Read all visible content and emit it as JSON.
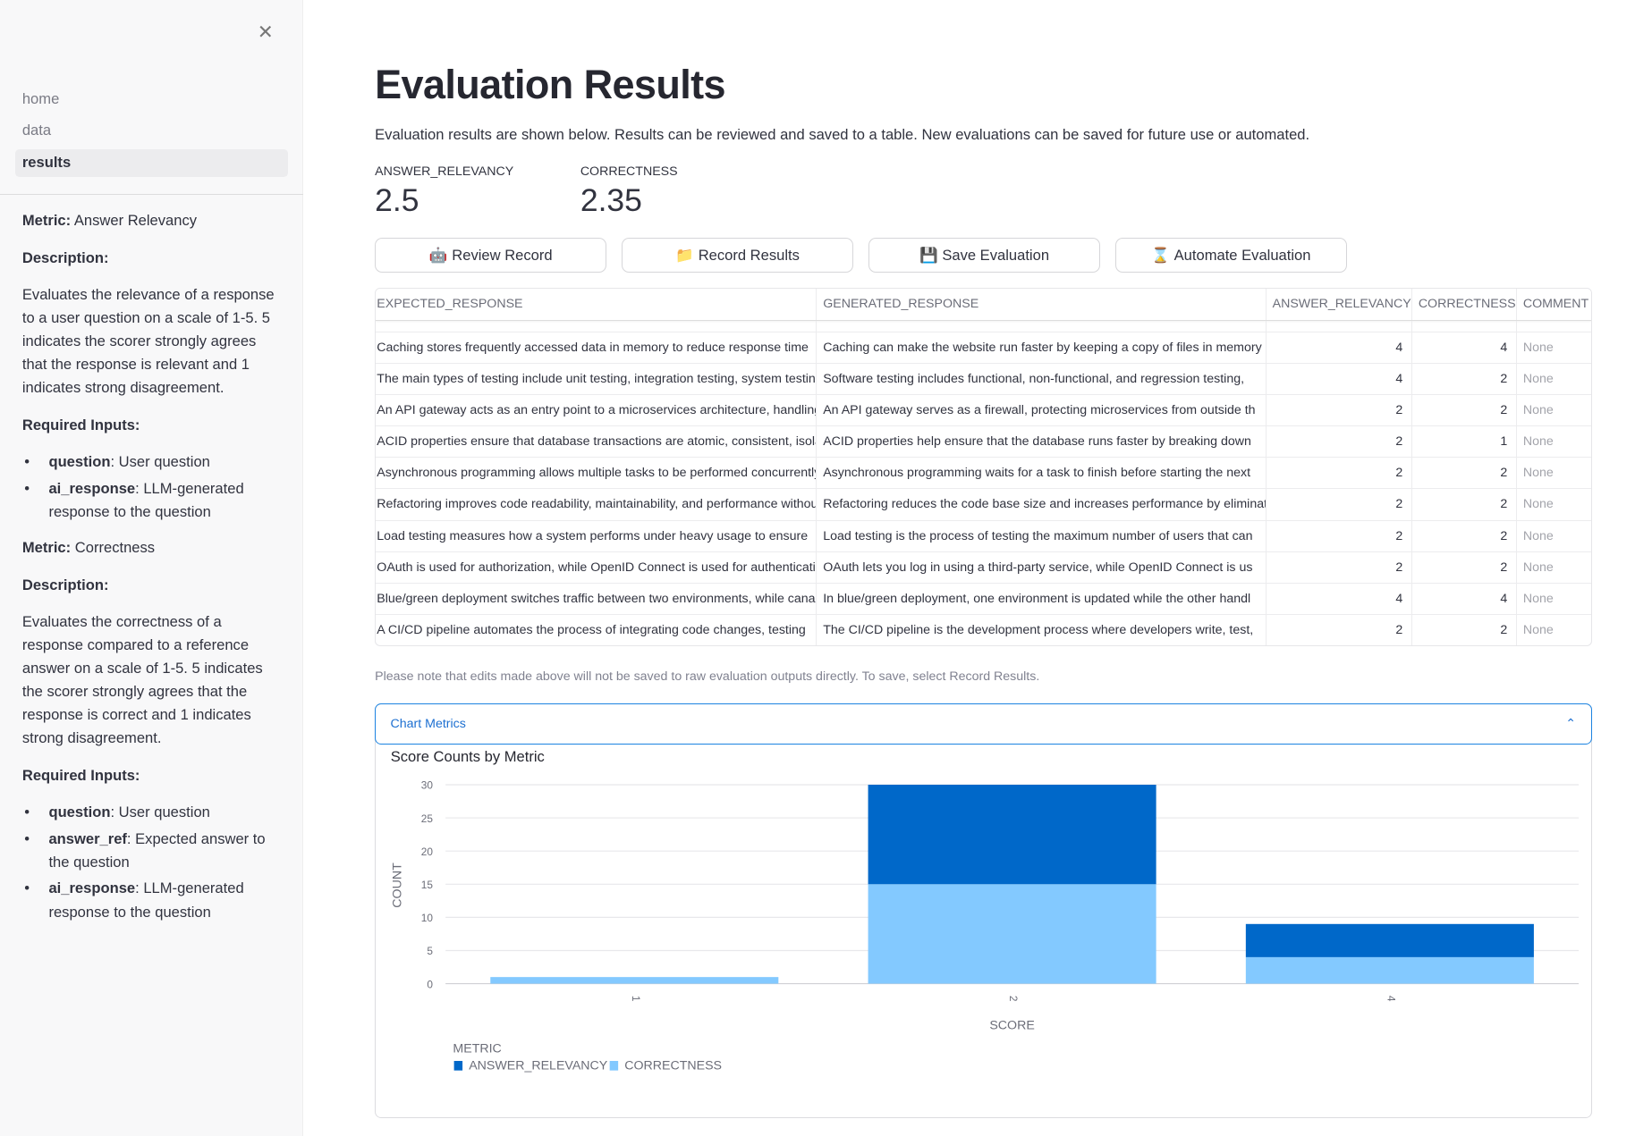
{
  "sidebar": {
    "nav": [
      "home",
      "data",
      "results"
    ],
    "selected": "results",
    "metrics": [
      {
        "metric_label": "Metric:",
        "metric_name": "Answer Relevancy",
        "desc_label": "Description:",
        "description": "Evaluates the relevance of a response to a user question on a scale of 1-5. 5 indicates the scorer strongly agrees that the response is relevant and 1 indicates strong disagreement.",
        "inputs_label": "Required Inputs:",
        "inputs": [
          {
            "name": "question",
            "text": ": User question"
          },
          {
            "name": "ai_response",
            "text": ": LLM-generated response to the question"
          }
        ]
      },
      {
        "metric_label": "Metric:",
        "metric_name": "Correctness",
        "desc_label": "Description:",
        "description": "Evaluates the correctness of a response compared to a reference answer on a scale of 1-5. 5 indicates the scorer strongly agrees that the response is correct and 1 indicates strong disagreement.",
        "inputs_label": "Required Inputs:",
        "inputs": [
          {
            "name": "question",
            "text": ": User question"
          },
          {
            "name": "answer_ref",
            "text": ": Expected answer to the question"
          },
          {
            "name": "ai_response",
            "text": ": LLM-generated response to the question"
          }
        ]
      }
    ]
  },
  "main": {
    "title": "Evaluation Results",
    "description": "Evaluation results are shown below. Results can be reviewed and saved to a table. New evaluations can be saved for future use or automated.",
    "metrics": [
      {
        "label": "ANSWER_RELEVANCY",
        "value": "2.5"
      },
      {
        "label": "CORRECTNESS",
        "value": "2.35"
      }
    ],
    "buttons": [
      {
        "icon": "🤖",
        "label": "Review Record"
      },
      {
        "icon": "📁",
        "label": "Record Results"
      },
      {
        "icon": "💾",
        "label": "Save Evaluation"
      },
      {
        "icon": "⌛",
        "label": "Automate Evaluation"
      }
    ],
    "table": {
      "columns": [
        "EXPECTED_RESPONSE",
        "GENERATED_RESPONSE",
        "ANSWER_RELEVANCY",
        "CORRECTNESS",
        "COMMENT"
      ],
      "rows": [
        [
          "Caching stores frequently accessed data in memory to reduce response time",
          "Caching can make the website run faster by keeping a copy of files in memory",
          "4",
          "4",
          "None"
        ],
        [
          "The main types of testing include unit testing, integration testing, system testing",
          "Software testing includes functional, non-functional, and regression testing,",
          "4",
          "2",
          "None"
        ],
        [
          "An API gateway acts as an entry point to a microservices architecture, handling",
          "An API gateway serves as a firewall, protecting microservices from outside th",
          "2",
          "2",
          "None"
        ],
        [
          "ACID properties ensure that database transactions are atomic, consistent, isolated",
          "ACID properties help ensure that the database runs faster by breaking down",
          "2",
          "1",
          "None"
        ],
        [
          "Asynchronous programming allows multiple tasks to be performed concurrently",
          "Asynchronous programming waits for a task to finish before starting the next",
          "2",
          "2",
          "None"
        ],
        [
          "Refactoring improves code readability, maintainability, and performance without",
          "Refactoring reduces the code base size and increases performance by eliminating",
          "2",
          "2",
          "None"
        ],
        [
          "Load testing measures how a system performs under heavy usage to ensure",
          "Load testing is the process of testing the maximum number of users that can",
          "2",
          "2",
          "None"
        ],
        [
          "OAuth is used for authorization, while OpenID Connect is used for authentication",
          "OAuth lets you log in using a third-party service, while OpenID Connect is us",
          "2",
          "2",
          "None"
        ],
        [
          "Blue/green deployment switches traffic between two environments, while canary",
          "In blue/green deployment, one environment is updated while the other handl",
          "4",
          "4",
          "None"
        ],
        [
          "A CI/CD pipeline automates the process of integrating code changes, testing",
          "The CI/CD pipeline is the development process where developers write, test,",
          "2",
          "2",
          "None"
        ]
      ]
    },
    "note": "Please note that edits made above will not be saved to raw evaluation outputs directly. To save, select Record Results.",
    "expander": {
      "label": "Chart Metrics",
      "icon": "chevron-up"
    }
  },
  "chart_data": {
    "type": "bar",
    "stacked": true,
    "title": "Score Counts by Metric",
    "xlabel": "SCORE",
    "ylabel": "COUNT",
    "categories": [
      "1",
      "2",
      "4"
    ],
    "ylim": [
      0,
      30
    ],
    "yticks": [
      0,
      5,
      10,
      15,
      20,
      25,
      30
    ],
    "grid": true,
    "legend": {
      "title": "METRIC",
      "placement": "bottom-left"
    },
    "series": [
      {
        "name": "CORRECTNESS",
        "color": "#83c9ff",
        "values": [
          1,
          15,
          4
        ]
      },
      {
        "name": "ANSWER_RELEVANCY",
        "color": "#0068c9",
        "values": [
          0,
          15,
          5
        ]
      }
    ],
    "legend_order": [
      "ANSWER_RELEVANCY",
      "CORRECTNESS"
    ]
  }
}
